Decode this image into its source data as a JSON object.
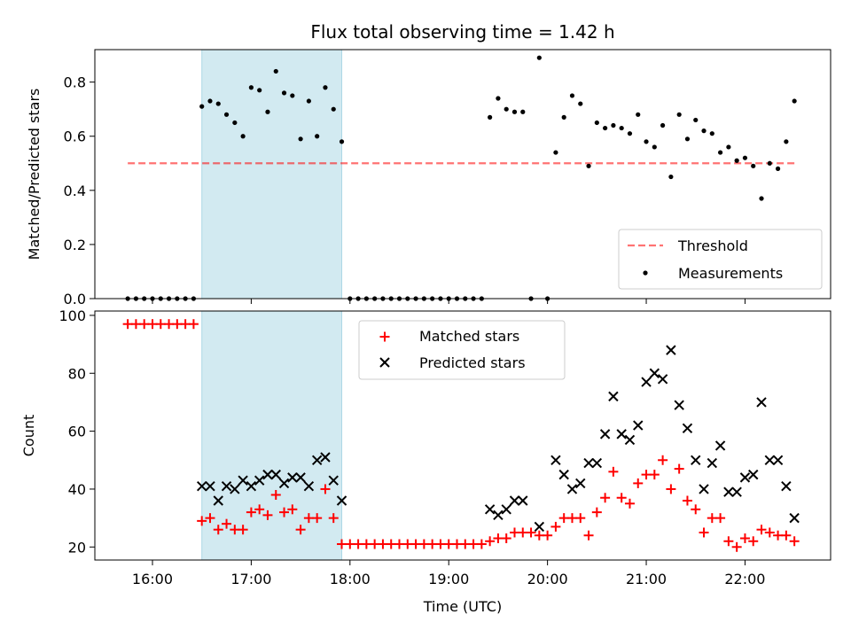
{
  "chart_data": [
    {
      "type": "scatter",
      "title": "Flux total observing time = 1.42 h",
      "xlabel": "",
      "ylabel": "Matched/Predicted stars",
      "xlim": [
        "15:25",
        "22:52"
      ],
      "ylim": [
        0.0,
        0.92
      ],
      "yticks": [
        "0.0",
        "0.2",
        "0.4",
        "0.6",
        "0.8"
      ],
      "shaded_interval": {
        "x": [
          "16:30",
          "17:55"
        ],
        "color": "#add8e6"
      },
      "threshold": {
        "y": 0.5,
        "x": [
          "15:45",
          "22:30"
        ],
        "color": "#ff0000",
        "dash": true
      },
      "legend": {
        "position": "lower right",
        "items": [
          "Threshold",
          "Measurements"
        ]
      },
      "series": [
        {
          "name": "Measurements",
          "color": "#000000",
          "marker": "dot",
          "points": [
            [
              "15:45",
              0
            ],
            [
              "15:50",
              0
            ],
            [
              "15:55",
              0
            ],
            [
              "16:00",
              0
            ],
            [
              "16:05",
              0
            ],
            [
              "16:10",
              0
            ],
            [
              "16:15",
              0
            ],
            [
              "16:20",
              0
            ],
            [
              "16:25",
              0
            ],
            [
              "16:30",
              0.71
            ],
            [
              "16:35",
              0.73
            ],
            [
              "16:40",
              0.72
            ],
            [
              "16:45",
              0.68
            ],
            [
              "16:50",
              0.65
            ],
            [
              "16:55",
              0.6
            ],
            [
              "17:00",
              0.78
            ],
            [
              "17:05",
              0.77
            ],
            [
              "17:10",
              0.69
            ],
            [
              "17:15",
              0.84
            ],
            [
              "17:20",
              0.76
            ],
            [
              "17:25",
              0.75
            ],
            [
              "17:30",
              0.59
            ],
            [
              "17:35",
              0.73
            ],
            [
              "17:40",
              0.6
            ],
            [
              "17:45",
              0.78
            ],
            [
              "17:50",
              0.7
            ],
            [
              "17:55",
              0.58
            ],
            [
              "18:00",
              0
            ],
            [
              "18:05",
              0
            ],
            [
              "18:10",
              0
            ],
            [
              "18:15",
              0
            ],
            [
              "18:20",
              0
            ],
            [
              "18:25",
              0
            ],
            [
              "18:30",
              0
            ],
            [
              "18:35",
              0
            ],
            [
              "18:40",
              0
            ],
            [
              "18:45",
              0
            ],
            [
              "18:50",
              0
            ],
            [
              "18:55",
              0
            ],
            [
              "19:00",
              0
            ],
            [
              "19:05",
              0
            ],
            [
              "19:10",
              0
            ],
            [
              "19:15",
              0
            ],
            [
              "19:20",
              0
            ],
            [
              "19:25",
              0.67
            ],
            [
              "19:30",
              0.74
            ],
            [
              "19:35",
              0.7
            ],
            [
              "19:40",
              0.69
            ],
            [
              "19:45",
              0.69
            ],
            [
              "19:50",
              0
            ],
            [
              "19:55",
              0.89
            ],
            [
              "20:00",
              0
            ],
            [
              "20:05",
              0.54
            ],
            [
              "20:10",
              0.67
            ],
            [
              "20:15",
              0.75
            ],
            [
              "20:20",
              0.72
            ],
            [
              "20:25",
              0.49
            ],
            [
              "20:30",
              0.65
            ],
            [
              "20:35",
              0.63
            ],
            [
              "20:40",
              0.64
            ],
            [
              "20:45",
              0.63
            ],
            [
              "20:50",
              0.61
            ],
            [
              "20:55",
              0.68
            ],
            [
              "21:00",
              0.58
            ],
            [
              "21:05",
              0.56
            ],
            [
              "21:10",
              0.64
            ],
            [
              "21:15",
              0.45
            ],
            [
              "21:20",
              0.68
            ],
            [
              "21:25",
              0.59
            ],
            [
              "21:30",
              0.66
            ],
            [
              "21:35",
              0.62
            ],
            [
              "21:40",
              0.61
            ],
            [
              "21:45",
              0.54
            ],
            [
              "21:50",
              0.56
            ],
            [
              "21:55",
              0.51
            ],
            [
              "22:00",
              0.52
            ],
            [
              "22:05",
              0.49
            ],
            [
              "22:10",
              0.37
            ],
            [
              "22:15",
              0.5
            ],
            [
              "22:20",
              0.48
            ],
            [
              "22:25",
              0.58
            ],
            [
              "22:30",
              0.73
            ]
          ]
        }
      ]
    },
    {
      "type": "scatter",
      "title": "",
      "xlabel": "Time (UTC)",
      "ylabel": "Count",
      "xlim": [
        "15:25",
        "22:52"
      ],
      "ylim": [
        15.5,
        101.5
      ],
      "xticks": [
        "16:00",
        "17:00",
        "18:00",
        "19:00",
        "20:00",
        "21:00",
        "22:00"
      ],
      "yticks": [
        "20",
        "40",
        "60",
        "80",
        "100"
      ],
      "shaded_interval": {
        "x": [
          "16:30",
          "17:55"
        ],
        "color": "#add8e6"
      },
      "legend": {
        "position": "top center",
        "items": [
          "Matched stars",
          "Predicted stars"
        ]
      },
      "series": [
        {
          "name": "Matched stars",
          "color": "#ff0000",
          "marker": "plus",
          "points": [
            [
              "15:45",
              97
            ],
            [
              "15:50",
              97
            ],
            [
              "15:55",
              97
            ],
            [
              "16:00",
              97
            ],
            [
              "16:05",
              97
            ],
            [
              "16:10",
              97
            ],
            [
              "16:15",
              97
            ],
            [
              "16:20",
              97
            ],
            [
              "16:25",
              97
            ],
            [
              "16:30",
              29
            ],
            [
              "16:35",
              30
            ],
            [
              "16:40",
              26
            ],
            [
              "16:45",
              28
            ],
            [
              "16:50",
              26
            ],
            [
              "16:55",
              26
            ],
            [
              "17:00",
              32
            ],
            [
              "17:05",
              33
            ],
            [
              "17:10",
              31
            ],
            [
              "17:15",
              38
            ],
            [
              "17:20",
              32
            ],
            [
              "17:25",
              33
            ],
            [
              "17:30",
              26
            ],
            [
              "17:35",
              30
            ],
            [
              "17:40",
              30
            ],
            [
              "17:45",
              40
            ],
            [
              "17:50",
              30
            ],
            [
              "17:55",
              21
            ],
            [
              "18:00",
              21
            ],
            [
              "18:05",
              21
            ],
            [
              "18:10",
              21
            ],
            [
              "18:15",
              21
            ],
            [
              "18:20",
              21
            ],
            [
              "18:25",
              21
            ],
            [
              "18:30",
              21
            ],
            [
              "18:35",
              21
            ],
            [
              "18:40",
              21
            ],
            [
              "18:45",
              21
            ],
            [
              "18:50",
              21
            ],
            [
              "18:55",
              21
            ],
            [
              "19:00",
              21
            ],
            [
              "19:05",
              21
            ],
            [
              "19:10",
              21
            ],
            [
              "19:15",
              21
            ],
            [
              "19:20",
              21
            ],
            [
              "19:25",
              22
            ],
            [
              "19:30",
              23
            ],
            [
              "19:35",
              23
            ],
            [
              "19:40",
              25
            ],
            [
              "19:45",
              25
            ],
            [
              "19:50",
              25
            ],
            [
              "19:55",
              24
            ],
            [
              "20:00",
              24
            ],
            [
              "20:05",
              27
            ],
            [
              "20:10",
              30
            ],
            [
              "20:15",
              30
            ],
            [
              "20:20",
              30
            ],
            [
              "20:25",
              24
            ],
            [
              "20:30",
              32
            ],
            [
              "20:35",
              37
            ],
            [
              "20:40",
              46
            ],
            [
              "20:45",
              37
            ],
            [
              "20:50",
              35
            ],
            [
              "20:55",
              42
            ],
            [
              "21:00",
              45
            ],
            [
              "21:05",
              45
            ],
            [
              "21:10",
              50
            ],
            [
              "21:15",
              40
            ],
            [
              "21:20",
              47
            ],
            [
              "21:25",
              36
            ],
            [
              "21:30",
              33
            ],
            [
              "21:35",
              25
            ],
            [
              "21:40",
              30
            ],
            [
              "21:45",
              30
            ],
            [
              "21:50",
              22
            ],
            [
              "21:55",
              20
            ],
            [
              "22:00",
              23
            ],
            [
              "22:05",
              22
            ],
            [
              "22:10",
              26
            ],
            [
              "22:15",
              25
            ],
            [
              "22:20",
              24
            ],
            [
              "22:25",
              24
            ],
            [
              "22:30",
              22
            ]
          ]
        },
        {
          "name": "Predicted stars",
          "color": "#000000",
          "marker": "x",
          "points": [
            [
              "16:30",
              41
            ],
            [
              "16:35",
              41
            ],
            [
              "16:40",
              36
            ],
            [
              "16:45",
              41
            ],
            [
              "16:50",
              40
            ],
            [
              "16:55",
              43
            ],
            [
              "17:00",
              41
            ],
            [
              "17:05",
              43
            ],
            [
              "17:10",
              45
            ],
            [
              "17:15",
              45
            ],
            [
              "17:20",
              42
            ],
            [
              "17:25",
              44
            ],
            [
              "17:30",
              44
            ],
            [
              "17:35",
              41
            ],
            [
              "17:40",
              50
            ],
            [
              "17:45",
              51
            ],
            [
              "17:50",
              43
            ],
            [
              "17:55",
              36
            ],
            [
              "19:25",
              33
            ],
            [
              "19:30",
              31
            ],
            [
              "19:35",
              33
            ],
            [
              "19:40",
              36
            ],
            [
              "19:45",
              36
            ],
            [
              "19:55",
              27
            ],
            [
              "20:05",
              50
            ],
            [
              "20:10",
              45
            ],
            [
              "20:15",
              40
            ],
            [
              "20:20",
              42
            ],
            [
              "20:25",
              49
            ],
            [
              "20:30",
              49
            ],
            [
              "20:35",
              59
            ],
            [
              "20:40",
              72
            ],
            [
              "20:45",
              59
            ],
            [
              "20:50",
              57
            ],
            [
              "20:55",
              62
            ],
            [
              "21:00",
              77
            ],
            [
              "21:05",
              80
            ],
            [
              "21:10",
              78
            ],
            [
              "21:15",
              88
            ],
            [
              "21:20",
              69
            ],
            [
              "21:25",
              61
            ],
            [
              "21:30",
              50
            ],
            [
              "21:35",
              40
            ],
            [
              "21:40",
              49
            ],
            [
              "21:45",
              55
            ],
            [
              "21:50",
              39
            ],
            [
              "21:55",
              39
            ],
            [
              "22:00",
              44
            ],
            [
              "22:05",
              45
            ],
            [
              "22:10",
              70
            ],
            [
              "22:15",
              50
            ],
            [
              "22:20",
              50
            ],
            [
              "22:25",
              41
            ],
            [
              "22:30",
              30
            ]
          ]
        }
      ]
    }
  ]
}
